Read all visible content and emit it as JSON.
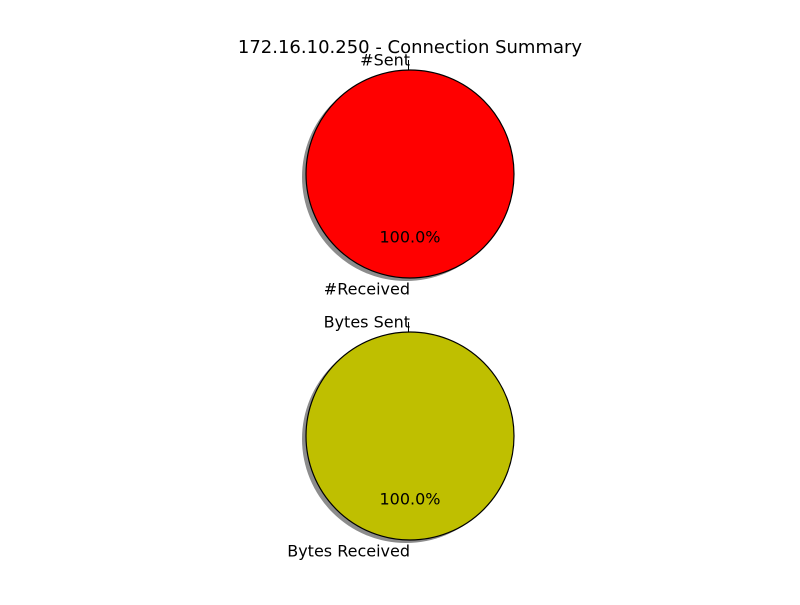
{
  "chart_data": {
    "title": "172.16.10.250 - Connection Summary",
    "charts": [
      {
        "type": "pie",
        "name": "packet-count",
        "labels": [
          "#Sent",
          "#Received"
        ],
        "values": [
          0.0,
          100.0
        ],
        "pct_labels": [
          "0.0%",
          "100.0%"
        ],
        "colors": [
          "#ff0000",
          "#ff0000"
        ],
        "shadow": true
      },
      {
        "type": "pie",
        "name": "byte-count",
        "labels": [
          "Bytes Sent",
          "Bytes Received"
        ],
        "values": [
          0.0,
          100.0
        ],
        "pct_labels": [
          "0.0%",
          "100.0%"
        ],
        "colors": [
          "#bfbf00",
          "#bfbf00"
        ],
        "shadow": true
      }
    ]
  }
}
